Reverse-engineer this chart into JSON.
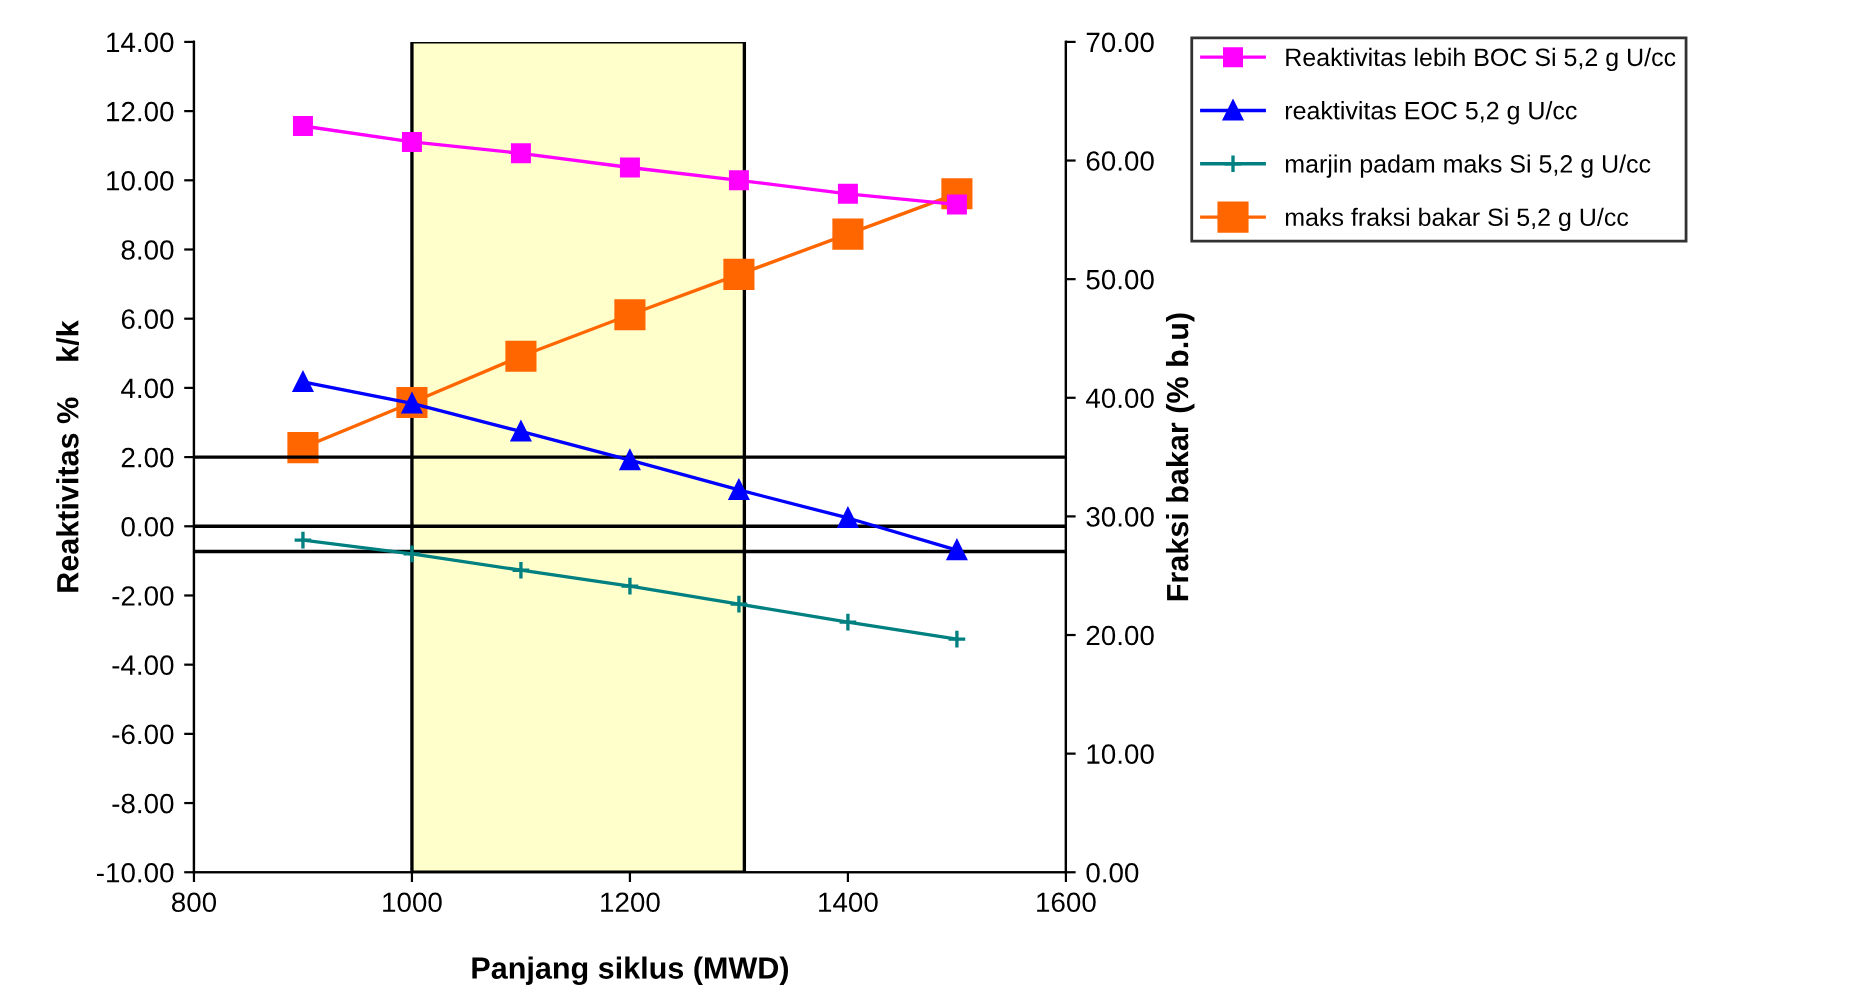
{
  "chart_data": {
    "type": "line",
    "xlabel": "Panjang siklus (MWD)",
    "ylabel": "Reaktivitas %    k/k",
    "y2label": "Fraksi bakar (% b.u)",
    "x": [
      900,
      1000,
      1100,
      1200,
      1300,
      1400,
      1500
    ],
    "series": [
      {
        "name": "Reaktivitas lebih BOC Si 5,2 g U/cc",
        "color": "#ff00ff",
        "marker": "square",
        "values": [
          11.57,
          11.11,
          10.78,
          10.37,
          10.0,
          9.61,
          9.3
        ]
      },
      {
        "name": "reaktivitas EOC 5,2 g U/cc",
        "color": "#0000ff",
        "marker": "triangle",
        "values": [
          4.17,
          3.55,
          2.74,
          1.91,
          1.05,
          0.24,
          -0.69
        ]
      },
      {
        "name": "marjin padam maks Si 5,2 g U/cc",
        "color": "#008080",
        "marker": "cross",
        "values": [
          -0.4,
          -0.8,
          -1.27,
          -1.73,
          -2.25,
          -2.77,
          -3.26
        ]
      },
      {
        "name": "maks fraksi bakar Si 5,2 g U/cc",
        "color": "#ff6600",
        "marker": "square",
        "axis": "y2",
        "values": [
          35.8,
          39.6,
          43.5,
          47.0,
          50.4,
          53.8,
          57.2
        ]
      }
    ],
    "xlim": [
      800,
      1600
    ],
    "xticks": [
      800,
      1000,
      1200,
      1400,
      1600
    ],
    "ylim": [
      -10,
      14
    ],
    "yticks": [
      {
        "value": -10,
        "label": "-10.00"
      },
      {
        "value": -8,
        "label": "-8.00"
      },
      {
        "value": -6,
        "label": "-6.00"
      },
      {
        "value": -4,
        "label": "-4.00"
      },
      {
        "value": -2,
        "label": "-2.00"
      },
      {
        "value": 0,
        "label": "0.00"
      },
      {
        "value": 2,
        "label": "2.00"
      },
      {
        "value": 4,
        "label": "4.00"
      },
      {
        "value": 6,
        "label": "6.00"
      },
      {
        "value": 8,
        "label": "8.00"
      },
      {
        "value": 10,
        "label": "10.00"
      },
      {
        "value": 12,
        "label": "12.00"
      },
      {
        "value": 14,
        "label": "14.00"
      }
    ],
    "y2lim": [
      0,
      70
    ],
    "y2ticks": [
      {
        "value": 0,
        "label": "0.00"
      },
      {
        "value": 10,
        "label": "10.00"
      },
      {
        "value": 20,
        "label": "20.00"
      },
      {
        "value": 30,
        "label": "30.00"
      },
      {
        "value": 40,
        "label": "40.00"
      },
      {
        "value": 50,
        "label": "50.00"
      },
      {
        "value": 60,
        "label": "60.00"
      },
      {
        "value": 70,
        "label": "70.00"
      }
    ],
    "ref_lines": [
      {
        "axis": "y",
        "value": 2.0,
        "color": "#000000"
      },
      {
        "axis": "y",
        "value": 0,
        "color": "#000000"
      },
      {
        "axis": "y",
        "value": -0.73,
        "color": "#000000"
      }
    ],
    "bands": [
      {
        "axis": "x",
        "from": 1000,
        "to": 1305,
        "color": "#ffffcc"
      }
    ],
    "legend": "right",
    "grid": false
  }
}
